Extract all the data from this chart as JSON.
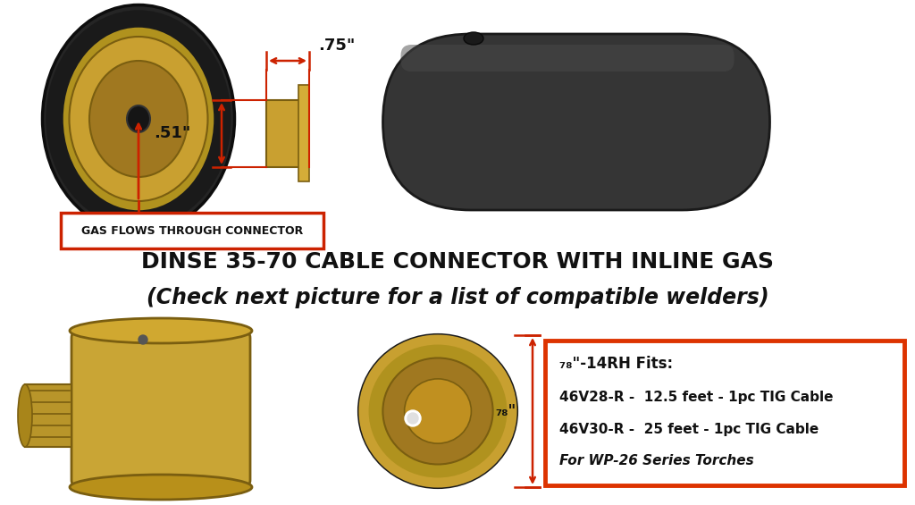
{
  "bg_color": "#ffffff",
  "title_line1": "DINSE 35-70 CABLE CONNECTOR WITH INLINE GAS",
  "title_line2": "(Check next picture for a list of compatible welders)",
  "label_gas": "GAS FLOWS THROUGH CONNECTOR",
  "dim_075": ".75\"",
  "dim_051": ".51\"",
  "dim_78a": "₇₈\"",
  "dim_78b": "₇₈\"",
  "dim_78_title": "₇₈\"-14RH Fits:",
  "spec_line1": "46V28-R -  12.5 feet - 1pc TIG Cable",
  "spec_line2": "46V30-R -  25 feet - 1pc TIG Cable",
  "spec_line3": "For WP-26 Series Torches",
  "red": "#cc2200",
  "box_red": "#dd3300",
  "black": "#111111",
  "brass_outer": "#b0921e",
  "brass_mid": "#c9a030",
  "brass_light": "#d4ad38",
  "brass_dark": "#7a5e10",
  "rubber_body": "#303030",
  "rubber_dark": "#1a1a1a",
  "white": "#ffffff",
  "title_fs": 18,
  "sub_fs": 17
}
